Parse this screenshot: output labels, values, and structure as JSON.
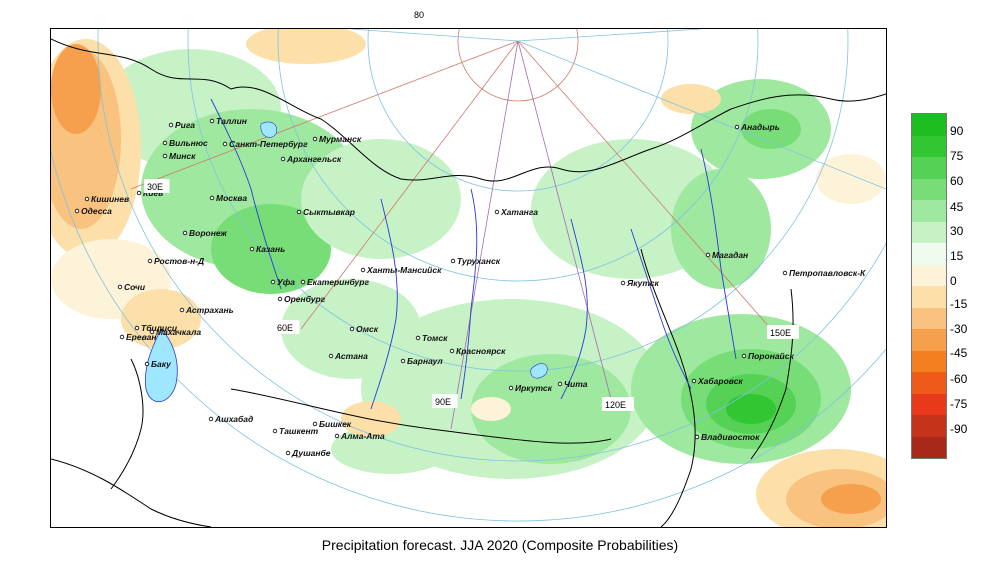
{
  "title": "Precipitation forecast. JJA 2020 (Composite Probabilities)",
  "top_latitude_label": "80",
  "meridian_labels": [
    "30E",
    "60E",
    "90E",
    "120E",
    "150E"
  ],
  "legend": {
    "levels": [
      "90",
      "75",
      "60",
      "45",
      "30",
      "15",
      "0",
      "-15",
      "-30",
      "-45",
      "-60",
      "-75",
      "-90"
    ],
    "colors": [
      "#1dbe1d",
      "#33c633",
      "#55d255",
      "#77dd77",
      "#9fe89f",
      "#c6f2c6",
      "#eefbee",
      "#fdf3d8",
      "#fcdfa9",
      "#f9c27e",
      "#f6a04e",
      "#f47f21",
      "#ef5a1a",
      "#e8391a",
      "#c4331a",
      "#a8281a"
    ]
  },
  "cities": [
    {
      "name": "Мурманск"
    },
    {
      "name": "Рига"
    },
    {
      "name": "Таллин"
    },
    {
      "name": "Вильнюс"
    },
    {
      "name": "Минск"
    },
    {
      "name": "Санкт-Петербург"
    },
    {
      "name": "Архангельск"
    },
    {
      "name": "Киев"
    },
    {
      "name": "Кишинев"
    },
    {
      "name": "Одесса"
    },
    {
      "name": "Москва"
    },
    {
      "name": "Воронеж"
    },
    {
      "name": "Сыктывкар"
    },
    {
      "name": "Казань"
    },
    {
      "name": "Ростов-н-Д"
    },
    {
      "name": "Сочи"
    },
    {
      "name": "Уфа"
    },
    {
      "name": "Екатеринбург"
    },
    {
      "name": "Ханты-Мансийск"
    },
    {
      "name": "Оренбург"
    },
    {
      "name": "Астрахань"
    },
    {
      "name": "Тбилиси"
    },
    {
      "name": "Махачкала"
    },
    {
      "name": "Ереван"
    },
    {
      "name": "Баку"
    },
    {
      "name": "Омск"
    },
    {
      "name": "Астана"
    },
    {
      "name": "Томск"
    },
    {
      "name": "Барнаул"
    },
    {
      "name": "Красноярск"
    },
    {
      "name": "Хатанга"
    },
    {
      "name": "Туруханск"
    },
    {
      "name": "Иркутск"
    },
    {
      "name": "Чита"
    },
    {
      "name": "Якутск"
    },
    {
      "name": "Анадырь"
    },
    {
      "name": "Магадан"
    },
    {
      "name": "Петропавловск-К"
    },
    {
      "name": "Поронайск"
    },
    {
      "name": "Хабаровск"
    },
    {
      "name": "Владивосток"
    },
    {
      "name": "Ашхабад"
    },
    {
      "name": "Ташкент"
    },
    {
      "name": "Бишкек"
    },
    {
      "name": "Алма-Ата"
    },
    {
      "name": "Душанбе"
    }
  ]
}
